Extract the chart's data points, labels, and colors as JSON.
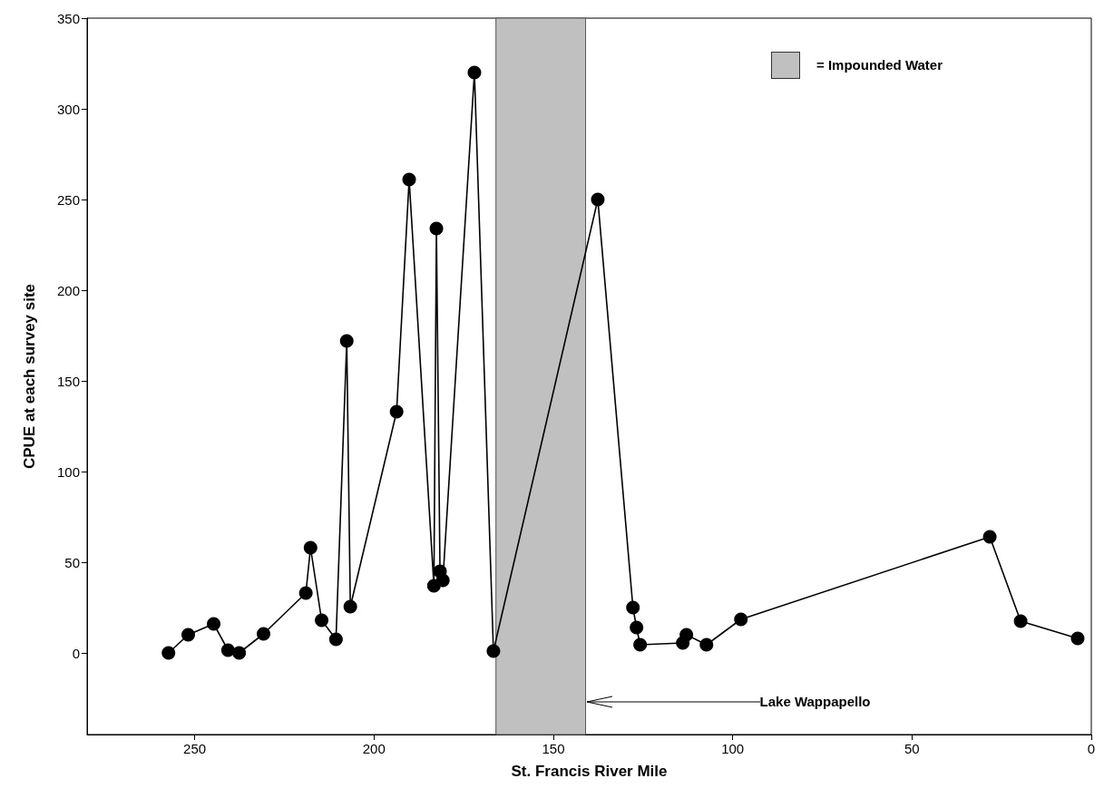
{
  "chart_data": {
    "type": "line",
    "xlabel": "St. Francis River Mile",
    "ylabel": "CPUE at each survey site",
    "xlim": [
      280,
      0
    ],
    "xticks": [
      250,
      200,
      150,
      100,
      50,
      0
    ],
    "ylim": [
      -45,
      350
    ],
    "yticks": [
      0,
      50,
      100,
      150,
      200,
      250,
      300,
      350
    ],
    "grid": false,
    "marker": "circle",
    "line_style": "solid",
    "series": [
      {
        "color": "#000000",
        "x": [
          257.3,
          251.8,
          244.7,
          240.7,
          237.6,
          230.8,
          219,
          217.7,
          214.6,
          210.6,
          207.6,
          206.6,
          193.7,
          190.2,
          183.3,
          182.6,
          181.6,
          180.8,
          172,
          166.7,
          137.6,
          127.8,
          126.8,
          125.8,
          113.9,
          112.9,
          107.3,
          97.7,
          28.3,
          19.7,
          3.8
        ],
        "values": [
          0,
          10,
          16,
          1.5,
          0,
          10.5,
          33,
          58,
          18,
          7.5,
          172,
          25.5,
          133,
          261,
          37,
          234,
          45,
          40,
          320,
          1,
          250,
          25,
          14,
          4.5,
          5.5,
          10,
          4.5,
          18.5,
          64,
          17.5,
          8
        ]
      }
    ],
    "bands": [
      {
        "axis": "x",
        "from": 166,
        "to": 141,
        "color": "#c0c0c0"
      }
    ],
    "annotations": [
      "= Impounded Water",
      {
        "text": "Lake Wappapello",
        "x": 141,
        "y": -27
      }
    ]
  }
}
